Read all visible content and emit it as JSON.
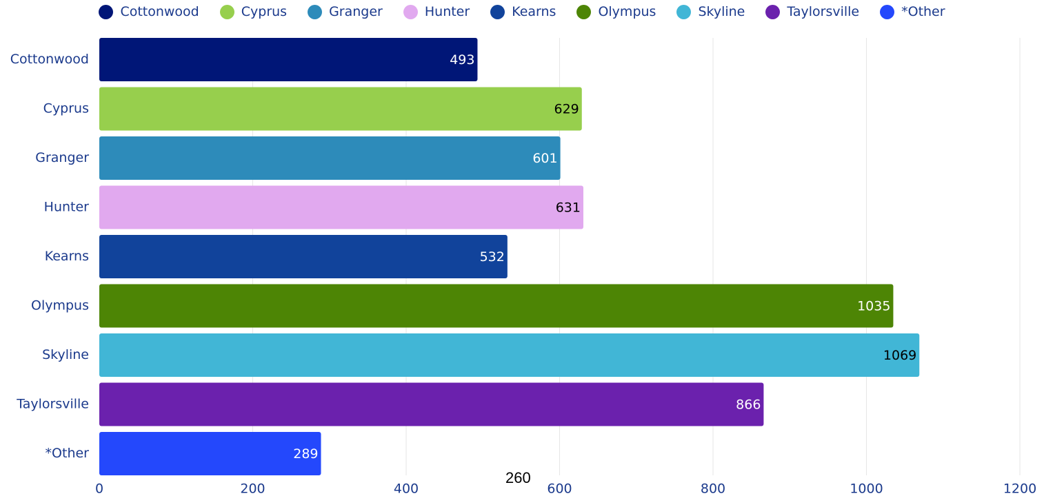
{
  "chart_data": {
    "type": "bar",
    "orientation": "horizontal",
    "title": "",
    "xlabel": "",
    "ylabel": "",
    "categories": [
      "Cottonwood",
      "Cyprus",
      "Granger",
      "Hunter",
      "Kearns",
      "Olympus",
      "Skyline",
      "Taylorsville",
      "*Other"
    ],
    "values": [
      493,
      629,
      601,
      631,
      532,
      1035,
      1069,
      866,
      289
    ],
    "colors": [
      "#001677",
      "#97cf4d",
      "#2d8bba",
      "#e1a9ef",
      "#11439b",
      "#4d8505",
      "#41b6d6",
      "#6b21ad",
      "#2448fc"
    ],
    "label_colors": [
      "#ffffff",
      "#000000",
      "#ffffff",
      "#000000",
      "#ffffff",
      "#ffffff",
      "#000000",
      "#ffffff",
      "#ffffff"
    ],
    "xlim": [
      0,
      1200
    ],
    "xticks": [
      0,
      200,
      400,
      600,
      800,
      1000,
      1200
    ],
    "grid": true,
    "legend": {
      "position": "top",
      "entries": [
        "Cottonwood",
        "Cyprus",
        "Granger",
        "Hunter",
        "Kearns",
        "Olympus",
        "Skyline",
        "Taylorsville",
        "*Other"
      ]
    }
  },
  "overlay_text": "260",
  "style": {
    "axis_text_color": "#1b3a8c",
    "grid_color": "#e6e6e6"
  }
}
